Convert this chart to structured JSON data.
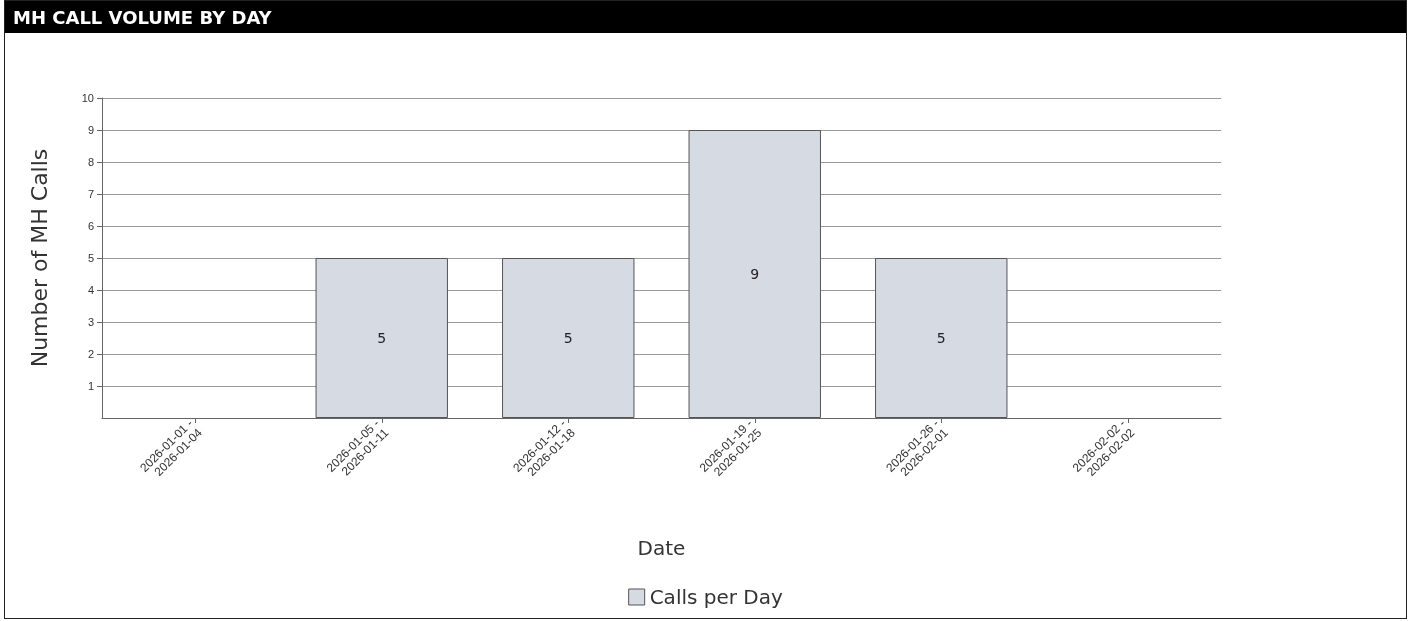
{
  "chart_data": {
    "type": "bar",
    "title": "MH CALL VOLUME BY DAY",
    "xlabel": "Date",
    "ylabel": "Number of MH Calls",
    "categories": [
      "2026-01-01 - 2026-01-04",
      "2026-01-05 - 2026-01-11",
      "2026-01-12 - 2026-01-18",
      "2026-01-19 - 2026-01-25",
      "2026-01-26 - 2026-02-01",
      "2026-02-02 - 2026-02-02"
    ],
    "series": [
      {
        "name": "Calls per Day",
        "color": "#d6dae3",
        "values": [
          0,
          5,
          5,
          9,
          5,
          0
        ],
        "value_labels": [
          null,
          "5",
          "5",
          "9",
          "5",
          null
        ]
      }
    ],
    "ylim": [
      0,
      10
    ],
    "yticks": [
      1,
      2,
      3,
      4,
      5,
      6,
      7,
      8,
      9,
      10
    ],
    "grid": "y",
    "legend": "bottom"
  }
}
